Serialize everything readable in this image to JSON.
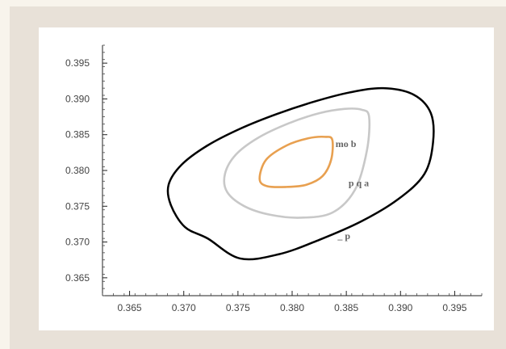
{
  "chart_data": {
    "type": "contour",
    "title": "",
    "xlabel": "",
    "ylabel": "",
    "xlim": [
      0.3625,
      0.3975
    ],
    "ylim": [
      0.3625,
      0.3975
    ],
    "x_ticks": [
      0.365,
      0.37,
      0.375,
      0.38,
      0.385,
      0.39,
      0.395
    ],
    "x_tick_labels": [
      "0.365",
      "0.370",
      "0.375",
      "0.380",
      "0.385",
      "0.390",
      "0.395"
    ],
    "y_ticks": [
      0.365,
      0.37,
      0.375,
      0.38,
      0.385,
      0.39,
      0.395
    ],
    "y_tick_labels": [
      "0.365",
      "0.370",
      "0.375",
      "0.380",
      "0.385",
      "0.390",
      "0.395"
    ],
    "grid": false,
    "contours": [
      {
        "label": "p q a",
        "color": "#c8c8c8",
        "center": [
          0.3802,
          0.38
        ],
        "x": [
          0.3871,
          0.3864,
          0.3848,
          0.3825,
          0.3797,
          0.3769,
          0.3748,
          0.3738,
          0.374,
          0.3756,
          0.378,
          0.3808,
          0.3837,
          0.3858,
          0.3869,
          0.3871
        ],
        "y": [
          0.3875,
          0.3885,
          0.3886,
          0.388,
          0.3866,
          0.3846,
          0.3822,
          0.3795,
          0.377,
          0.375,
          0.3738,
          0.3734,
          0.3741,
          0.3773,
          0.3828,
          0.3875
        ]
      },
      {
        "label": "mo b",
        "color": "#e8a050",
        "center": [
          0.3803,
          0.3804
        ],
        "x": [
          0.3837,
          0.383,
          0.3815,
          0.3795,
          0.3776,
          0.377,
          0.3777,
          0.3795,
          0.3813,
          0.3828,
          0.3836,
          0.3837
        ],
        "y": [
          0.3843,
          0.3847,
          0.3845,
          0.3835,
          0.3815,
          0.3788,
          0.3778,
          0.3777,
          0.378,
          0.3792,
          0.3815,
          0.3843
        ]
      },
      {
        "label": "_ p",
        "color": "#000000",
        "center": [
          0.3803,
          0.3809
        ],
        "x": [
          0.3928,
          0.3912,
          0.3884,
          0.3853,
          0.382,
          0.3786,
          0.3753,
          0.3722,
          0.3698,
          0.3686,
          0.3688,
          0.3701,
          0.3722,
          0.3752,
          0.3788,
          0.3825,
          0.3864,
          0.3898,
          0.3922,
          0.393,
          0.3928
        ],
        "y": [
          0.388,
          0.3906,
          0.3915,
          0.3909,
          0.3896,
          0.3879,
          0.3859,
          0.3835,
          0.3808,
          0.378,
          0.3752,
          0.3721,
          0.3705,
          0.3677,
          0.3683,
          0.3703,
          0.3729,
          0.376,
          0.3795,
          0.3839,
          0.388
        ]
      }
    ],
    "label_positions": [
      {
        "text": "mo b",
        "x": 0.384,
        "y": 0.3833
      },
      {
        "text": "p q a",
        "x": 0.3852,
        "y": 0.3778
      },
      {
        "text": "_ p",
        "x": 0.3842,
        "y": 0.3704
      }
    ]
  }
}
